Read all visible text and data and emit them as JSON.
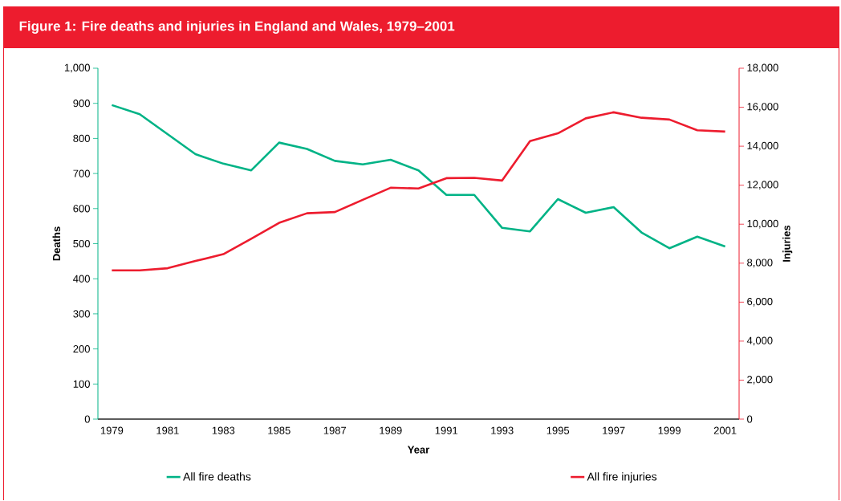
{
  "chart_data": {
    "type": "line",
    "title": "Figure 1: Fire deaths and injuries in England and Wales, 1979–2001",
    "xlabel": "Year",
    "ylabel": "Deaths",
    "y2label": "Injuries",
    "categories": [
      "1979",
      null,
      "1981",
      null,
      "1983",
      null,
      "1985",
      null,
      "1987",
      null,
      "1989",
      null,
      "1991",
      null,
      "1993",
      null,
      "1995",
      null,
      "1997",
      null,
      "1999",
      null,
      "2001"
    ],
    "series": [
      {
        "name": "All fire deaths",
        "color": "#00b386",
        "axis": "y",
        "values": [
          895,
          869,
          812,
          755,
          728,
          709,
          788,
          770,
          736,
          726,
          739,
          709,
          639,
          639,
          545,
          535,
          627,
          588,
          604,
          532,
          487,
          520,
          492
        ]
      },
      {
        "name": "All fire injuries",
        "color": "#ed1c2e",
        "axis": "y2",
        "values": [
          7630,
          7630,
          7740,
          8110,
          8460,
          9250,
          10070,
          10560,
          10620,
          11250,
          11870,
          11830,
          12360,
          12380,
          12240,
          14260,
          14660,
          15430,
          15740,
          15460,
          15370,
          14820,
          14750
        ]
      }
    ],
    "ylim": [
      0,
      1000
    ],
    "yticks": [
      0,
      100,
      200,
      300,
      400,
      500,
      600,
      700,
      800,
      900,
      {
        "value": 1000,
        "label": "1,000"
      }
    ],
    "y2lim": [
      0,
      18000
    ],
    "y2ticks": [
      0,
      {
        "value": 2000,
        "label": "2,000"
      },
      {
        "value": 4000,
        "label": "4,000"
      },
      {
        "value": 6000,
        "label": "6,000"
      },
      {
        "value": 8000,
        "label": "8,000"
      },
      {
        "value": 10000,
        "label": "10,000"
      },
      {
        "value": 12000,
        "label": "12,000"
      },
      {
        "value": 14000,
        "label": "14,000"
      },
      {
        "value": 16000,
        "label": "16,000"
      },
      {
        "value": 18000,
        "label": "18,000"
      }
    ],
    "legend": "bottom",
    "line_style": "solid"
  }
}
